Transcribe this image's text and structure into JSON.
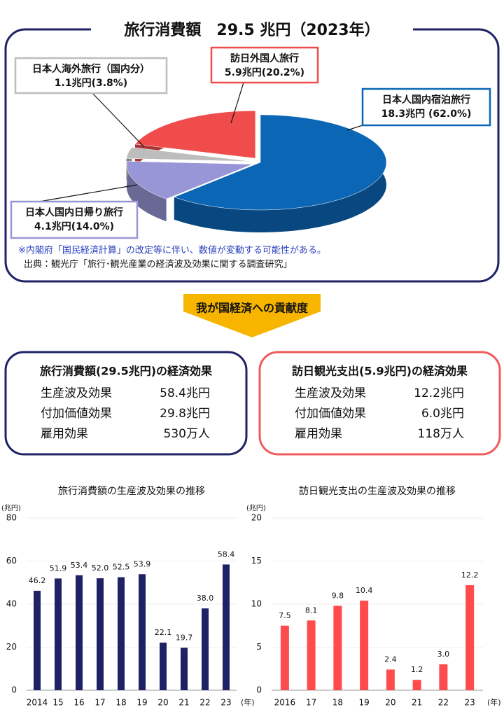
{
  "chart_data": [
    {
      "type": "pie",
      "title": "旅行消費額　29.5 兆円（2023年）",
      "categories": [
        "日本人国内宿泊旅行",
        "日本人国内日帰り旅行",
        "日本人海外旅行（国内分）",
        "訪日外国人旅行"
      ],
      "values": [
        62.0,
        14.0,
        3.8,
        20.2
      ],
      "value_labels": [
        "18.3兆円 (62.0%)",
        "4.1兆円(14.0%)",
        "1.1兆円(3.8%)",
        "5.9兆円(20.2%)"
      ],
      "colors": [
        "#0b66b5",
        "#9896d6",
        "#bdbdbd",
        "#f04c4c"
      ],
      "note": "※内閣府「国民経済計算」の改定等に伴い、数値が変動する可能性がある。",
      "source": "出典：観光庁「旅行･観光産業の経済波及効果に関する調査研究」"
    },
    {
      "type": "bar",
      "title": "旅行消費額の生産波及効果の推移",
      "y_unit": "(兆円)",
      "x_unit": "(年)",
      "categories": [
        "2014",
        "15",
        "16",
        "17",
        "18",
        "19",
        "20",
        "21",
        "22",
        "23"
      ],
      "values": [
        46.2,
        51.9,
        53.4,
        52.0,
        52.5,
        53.9,
        22.1,
        19.7,
        38.0,
        58.4
      ],
      "value_labels": [
        "46.2",
        "51.9",
        "53.4",
        "52.0",
        "52.5",
        "53.9",
        "22.1",
        "19.7",
        "38.0",
        "58.4"
      ],
      "color": "#1f2166",
      "ylim": [
        0,
        80
      ],
      "yticks": [
        0,
        20,
        40,
        60,
        80
      ]
    },
    {
      "type": "bar",
      "title": "訪日観光支出の生産波及効果の推移",
      "y_unit": "(兆円)",
      "x_unit": "(年)",
      "categories": [
        "2016",
        "17",
        "18",
        "19",
        "20",
        "21",
        "22",
        "23"
      ],
      "values": [
        7.5,
        8.1,
        9.8,
        10.4,
        2.4,
        1.2,
        3.0,
        12.2
      ],
      "value_labels": [
        "7.5",
        "8.1",
        "9.8",
        "10.4",
        "2.4",
        "1.2",
        "3.0",
        "12.2"
      ],
      "color": "#ff4b4b",
      "ylim": [
        0,
        20
      ],
      "yticks": [
        0,
        5,
        10,
        15,
        20
      ]
    }
  ],
  "contribution_label": "我が国経済への貢献度",
  "effects": [
    {
      "title": "旅行消費額(29.5兆円)の経済効果",
      "rows": [
        [
          "生産波及効果",
          "58.4兆円"
        ],
        [
          "付加価値効果",
          "29.8兆円"
        ],
        [
          "雇用効果",
          "530万人"
        ]
      ]
    },
    {
      "title": "訪日観光支出(5.9兆円)の経済効果",
      "rows": [
        [
          "生産波及効果",
          "12.2兆円"
        ],
        [
          "付加価値効果",
          "6.0兆円"
        ],
        [
          "雇用効果",
          "118万人"
        ]
      ]
    }
  ]
}
